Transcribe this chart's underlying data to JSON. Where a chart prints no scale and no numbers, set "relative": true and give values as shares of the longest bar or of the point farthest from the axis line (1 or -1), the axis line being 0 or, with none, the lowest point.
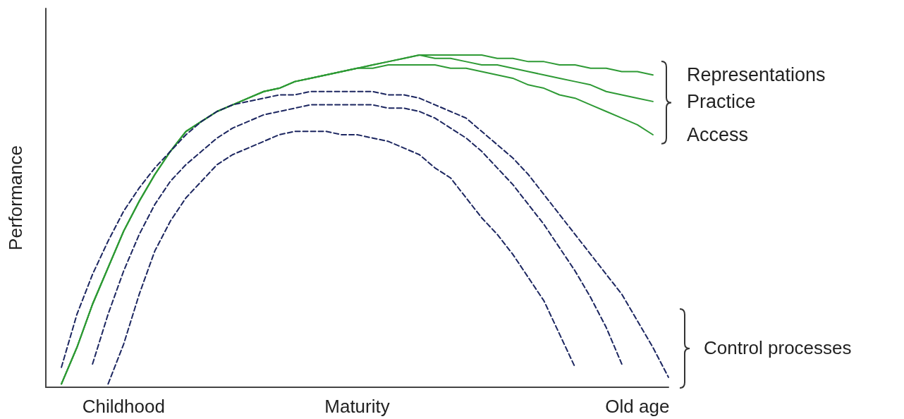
{
  "chart_data": {
    "type": "line",
    "relative": true,
    "ylabel": "Performance",
    "tick_labels": "x",
    "marker": "none",
    "legend": false,
    "grid": false,
    "categories": [
      null,
      null,
      null,
      null,
      null,
      "Childhood",
      null,
      null,
      null,
      null,
      null,
      null,
      null,
      null,
      null,
      null,
      null,
      null,
      null,
      null,
      "Maturity",
      null,
      null,
      null,
      null,
      null,
      null,
      null,
      null,
      null,
      null,
      null,
      null,
      null,
      null,
      null,
      null,
      null,
      "Old age",
      null,
      null
    ],
    "annotations": [
      "Control processes"
    ],
    "series": [
      {
        "name": "Representations",
        "color": "#2e9a35",
        "line_style": "solid",
        "values": [
          null,
          0.01,
          0.12,
          0.25,
          0.36,
          0.47,
          0.56,
          0.64,
          0.71,
          0.77,
          0.8,
          0.83,
          0.85,
          0.87,
          0.89,
          0.9,
          0.92,
          0.93,
          0.94,
          0.95,
          0.96,
          0.97,
          0.98,
          0.99,
          1.0,
          1.0,
          1.0,
          1.0,
          1.0,
          0.99,
          0.99,
          0.98,
          0.98,
          0.97,
          0.97,
          0.96,
          0.96,
          0.95,
          0.95,
          0.94,
          null
        ]
      },
      {
        "name": "Practice",
        "color": "#2e9a35",
        "line_style": "solid",
        "values": [
          null,
          0.01,
          0.12,
          0.25,
          0.36,
          0.47,
          0.56,
          0.64,
          0.71,
          0.77,
          0.8,
          0.83,
          0.85,
          0.87,
          0.89,
          0.9,
          0.92,
          0.93,
          0.94,
          0.95,
          0.96,
          0.97,
          0.98,
          0.99,
          1.0,
          0.99,
          0.99,
          0.98,
          0.97,
          0.97,
          0.96,
          0.95,
          0.94,
          0.93,
          0.92,
          0.91,
          0.89,
          0.88,
          0.87,
          0.86,
          null
        ]
      },
      {
        "name": "Access",
        "color": "#2e9a35",
        "line_style": "solid",
        "values": [
          null,
          0.01,
          0.12,
          0.25,
          0.36,
          0.47,
          0.56,
          0.64,
          0.71,
          0.77,
          0.8,
          0.83,
          0.85,
          0.87,
          0.89,
          0.9,
          0.92,
          0.93,
          0.94,
          0.95,
          0.96,
          0.96,
          0.97,
          0.97,
          0.97,
          0.97,
          0.96,
          0.96,
          0.95,
          0.94,
          0.93,
          0.91,
          0.9,
          0.88,
          0.87,
          0.85,
          0.83,
          0.81,
          0.79,
          0.76,
          null
        ]
      },
      {
        "color": "#1c2660",
        "line_style": "dashed",
        "values": [
          null,
          0.06,
          0.22,
          0.34,
          0.44,
          0.53,
          0.6,
          0.66,
          0.71,
          0.76,
          0.8,
          0.83,
          0.85,
          0.86,
          0.87,
          0.88,
          0.88,
          0.89,
          0.89,
          0.89,
          0.89,
          0.89,
          0.88,
          0.88,
          0.87,
          0.85,
          0.83,
          0.81,
          0.77,
          0.73,
          0.69,
          0.64,
          0.58,
          0.52,
          0.46,
          0.4,
          0.34,
          0.28,
          0.2,
          0.12,
          0.03
        ]
      },
      {
        "color": "#1c2660",
        "line_style": "dashed",
        "values": [
          null,
          null,
          null,
          0.07,
          0.22,
          0.35,
          0.46,
          0.55,
          0.62,
          0.67,
          0.71,
          0.75,
          0.78,
          0.8,
          0.82,
          0.83,
          0.84,
          0.85,
          0.85,
          0.85,
          0.85,
          0.85,
          0.84,
          0.84,
          0.83,
          0.81,
          0.78,
          0.75,
          0.71,
          0.66,
          0.61,
          0.55,
          0.49,
          0.42,
          0.35,
          0.27,
          0.18,
          0.07,
          null,
          null,
          null
        ]
      },
      {
        "color": "#1c2660",
        "line_style": "dashed",
        "values": [
          null,
          null,
          null,
          null,
          0.01,
          0.13,
          0.28,
          0.41,
          0.5,
          0.57,
          0.62,
          0.67,
          0.7,
          0.72,
          0.74,
          0.76,
          0.77,
          0.77,
          0.77,
          0.76,
          0.76,
          0.75,
          0.74,
          0.72,
          0.7,
          0.66,
          0.63,
          0.57,
          0.51,
          0.46,
          0.4,
          0.33,
          0.26,
          0.16,
          0.06,
          null,
          null,
          null,
          null,
          null,
          null
        ]
      }
    ]
  }
}
